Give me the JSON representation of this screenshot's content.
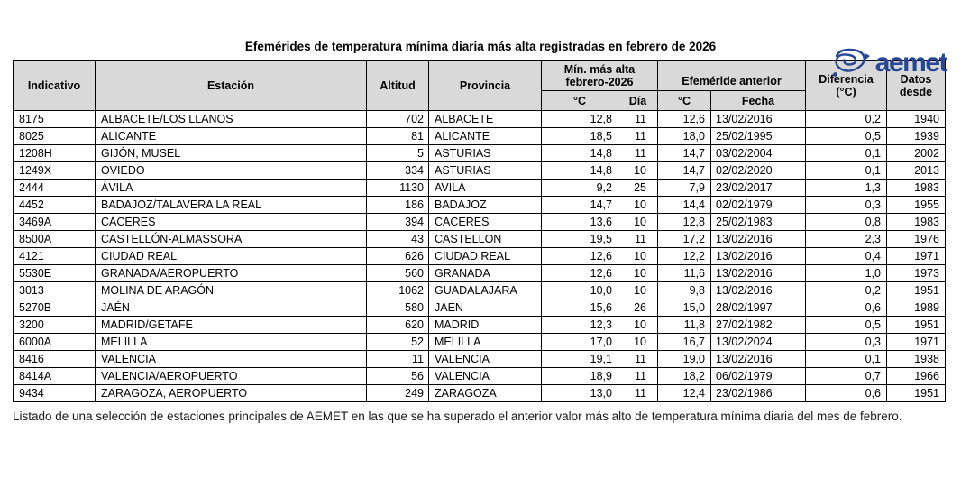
{
  "logo": {
    "text": "aemet",
    "color": "#264795"
  },
  "title": "Efemérides de temperatura mínima diaria más alta registradas en febrero de 2026",
  "table": {
    "headers": {
      "indicativo": "Indicativo",
      "estacion": "Estación",
      "altitud": "Altitud",
      "provincia": "Provincia",
      "min_group_line1": "Mín. más alta",
      "min_group_line2": "febrero-2026",
      "efemeride_group": "Efeméride anterior",
      "min_c": "°C",
      "min_dia": "Día",
      "prev_c": "°C",
      "prev_fecha": "Fecha",
      "diferencia_line1": "Diferencia",
      "diferencia_line2": "(°C)",
      "datos_line1": "Datos",
      "datos_line2": "desde"
    },
    "rows": [
      [
        "8175",
        "ALBACETE/LOS LLANOS",
        "702",
        "ALBACETE",
        "12,8",
        "11",
        "12,6",
        "13/02/2016",
        "0,2",
        "1940"
      ],
      [
        "8025",
        "ALICANTE",
        "81",
        "ALICANTE",
        "18,5",
        "11",
        "18,0",
        "25/02/1995",
        "0,5",
        "1939"
      ],
      [
        "1208H",
        "GIJÓN, MUSEL",
        "5",
        "ASTURIAS",
        "14,8",
        "11",
        "14,7",
        "03/02/2004",
        "0,1",
        "2002"
      ],
      [
        "1249X",
        "OVIEDO",
        "334",
        "ASTURIAS",
        "14,8",
        "10",
        "14,7",
        "02/02/2020",
        "0,1",
        "2013"
      ],
      [
        "2444",
        "ÁVILA",
        "1130",
        "AVILA",
        "9,2",
        "25",
        "7,9",
        "23/02/2017",
        "1,3",
        "1983"
      ],
      [
        "4452",
        "BADAJOZ/TALAVERA LA REAL",
        "186",
        "BADAJOZ",
        "14,7",
        "10",
        "14,4",
        "02/02/1979",
        "0,3",
        "1955"
      ],
      [
        "3469A",
        "CÁCERES",
        "394",
        "CACERES",
        "13,6",
        "10",
        "12,8",
        "25/02/1983",
        "0,8",
        "1983"
      ],
      [
        "8500A",
        "CASTELLÓN-ALMASSORA",
        "43",
        "CASTELLON",
        "19,5",
        "11",
        "17,2",
        "13/02/2016",
        "2,3",
        "1976"
      ],
      [
        "4121",
        "CIUDAD REAL",
        "626",
        "CIUDAD REAL",
        "12,6",
        "10",
        "12,2",
        "13/02/2016",
        "0,4",
        "1971"
      ],
      [
        "5530E",
        "GRANADA/AEROPUERTO",
        "560",
        "GRANADA",
        "12,6",
        "10",
        "11,6",
        "13/02/2016",
        "1,0",
        "1973"
      ],
      [
        "3013",
        "MOLINA DE ARAGÓN",
        "1062",
        "GUADALAJARA",
        "10,0",
        "10",
        "9,8",
        "13/02/2016",
        "0,2",
        "1951"
      ],
      [
        "5270B",
        "JAÉN",
        "580",
        "JAEN",
        "15,6",
        "26",
        "15,0",
        "28/02/1997",
        "0,6",
        "1989"
      ],
      [
        "3200",
        "MADRID/GETAFE",
        "620",
        "MADRID",
        "12,3",
        "10",
        "11,8",
        "27/02/1982",
        "0,5",
        "1951"
      ],
      [
        "6000A",
        "MELILLA",
        "52",
        "MELILLA",
        "17,0",
        "10",
        "16,7",
        "13/02/2024",
        "0,3",
        "1971"
      ],
      [
        "8416",
        "VALENCIA",
        "11",
        "VALENCIA",
        "19,1",
        "11",
        "19,0",
        "13/02/2016",
        "0,1",
        "1938"
      ],
      [
        "8414A",
        "VALENCIA/AEROPUERTO",
        "56",
        "VALENCIA",
        "18,9",
        "11",
        "18,2",
        "06/02/1979",
        "0,7",
        "1966"
      ],
      [
        "9434",
        "ZARAGOZA, AEROPUERTO",
        "249",
        "ZARAGOZA",
        "13,0",
        "11",
        "12,4",
        "23/02/1986",
        "0,6",
        "1951"
      ]
    ]
  },
  "footnote": "Listado de una selección de estaciones principales de AEMET en las que se ha superado el anterior valor más alto de temperatura mínima diaria del mes de febrero."
}
